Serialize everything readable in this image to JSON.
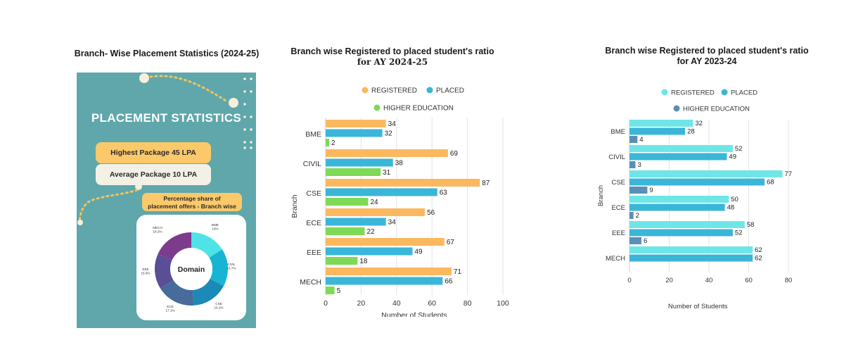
{
  "poster": {
    "title": "Branch- Wise Placement Statistics (2024-25)",
    "heading": "PLACEMENT STATISTICS",
    "highest_package": "Highest Package 45 LPA",
    "average_package": "Average Package 10 LPA",
    "share_label_line1": "Percentage share of",
    "share_label_line2": "placement offers - Branch wise",
    "donut_center": "Domain",
    "colors": {
      "background": "#5fa7ab",
      "pill_yellow": "#fcc96a",
      "pill_cream": "#f3f1e6"
    }
  },
  "chart_data": [
    {
      "type": "pie",
      "title": "",
      "center_label": "Domain",
      "categories": [
        "BME",
        "CIVIL",
        "CSE",
        "ECE",
        "EEE",
        "MECH"
      ],
      "values": [
        16,
        16.7,
        16.2,
        17.1,
        15.6,
        18.2
      ],
      "labels": [
        "BME\n16%",
        "CIVIL\n16.7%",
        "CSE\n16.2%",
        "ECE\n17.1%",
        "EEE\n15.6%",
        "MECH\n18.2%"
      ],
      "colors": [
        "#4ee3e6",
        "#17b4d4",
        "#1c89b6",
        "#476b9a",
        "#5a4e96",
        "#7d3b8e"
      ]
    },
    {
      "type": "bar",
      "orientation": "horizontal",
      "title": "Branch wise Registered to placed student's ratio",
      "subtitle": "for AY 2024-25",
      "xlabel": "Number of Students",
      "ylabel": "Branch",
      "xlim": [
        0,
        100
      ],
      "xticks": [
        0,
        20,
        40,
        60,
        80,
        100
      ],
      "grid": true,
      "legend": "top",
      "categories": [
        "BME",
        "CIVIL",
        "CSE",
        "ECE",
        "EEE",
        "MECH"
      ],
      "series": [
        {
          "name": "REGISTERED",
          "color": "#fcb85e",
          "values": [
            34,
            69,
            87,
            56,
            67,
            71
          ]
        },
        {
          "name": "PLACED",
          "color": "#3ab6d8",
          "values": [
            32,
            38,
            63,
            34,
            49,
            66
          ]
        },
        {
          "name": "HIGHER EDUCATION",
          "color": "#7ed957",
          "values": [
            2,
            31,
            24,
            22,
            18,
            5
          ]
        }
      ]
    },
    {
      "type": "bar",
      "orientation": "horizontal",
      "title": "Branch wise Registered to placed student's ratio",
      "subtitle": "for AY 2023-24",
      "xlabel": "Number of Students",
      "ylabel": "Branch",
      "xlim": [
        0,
        80
      ],
      "xticks": [
        0,
        20,
        40,
        60,
        80
      ],
      "grid": true,
      "legend": "top",
      "categories": [
        "BME",
        "CIVIL",
        "CSE",
        "ECE",
        "EEE",
        "MECH"
      ],
      "series": [
        {
          "name": "REGISTERED",
          "color": "#6ee6e8",
          "values": [
            32,
            52,
            77,
            50,
            58,
            62
          ]
        },
        {
          "name": "PLACED",
          "color": "#3ab6d8",
          "values": [
            28,
            49,
            68,
            48,
            52,
            62
          ]
        },
        {
          "name": "HIGHER EDUCATION",
          "color": "#5a8fb8",
          "values": [
            4,
            3,
            9,
            2,
            6,
            null
          ]
        }
      ]
    }
  ]
}
